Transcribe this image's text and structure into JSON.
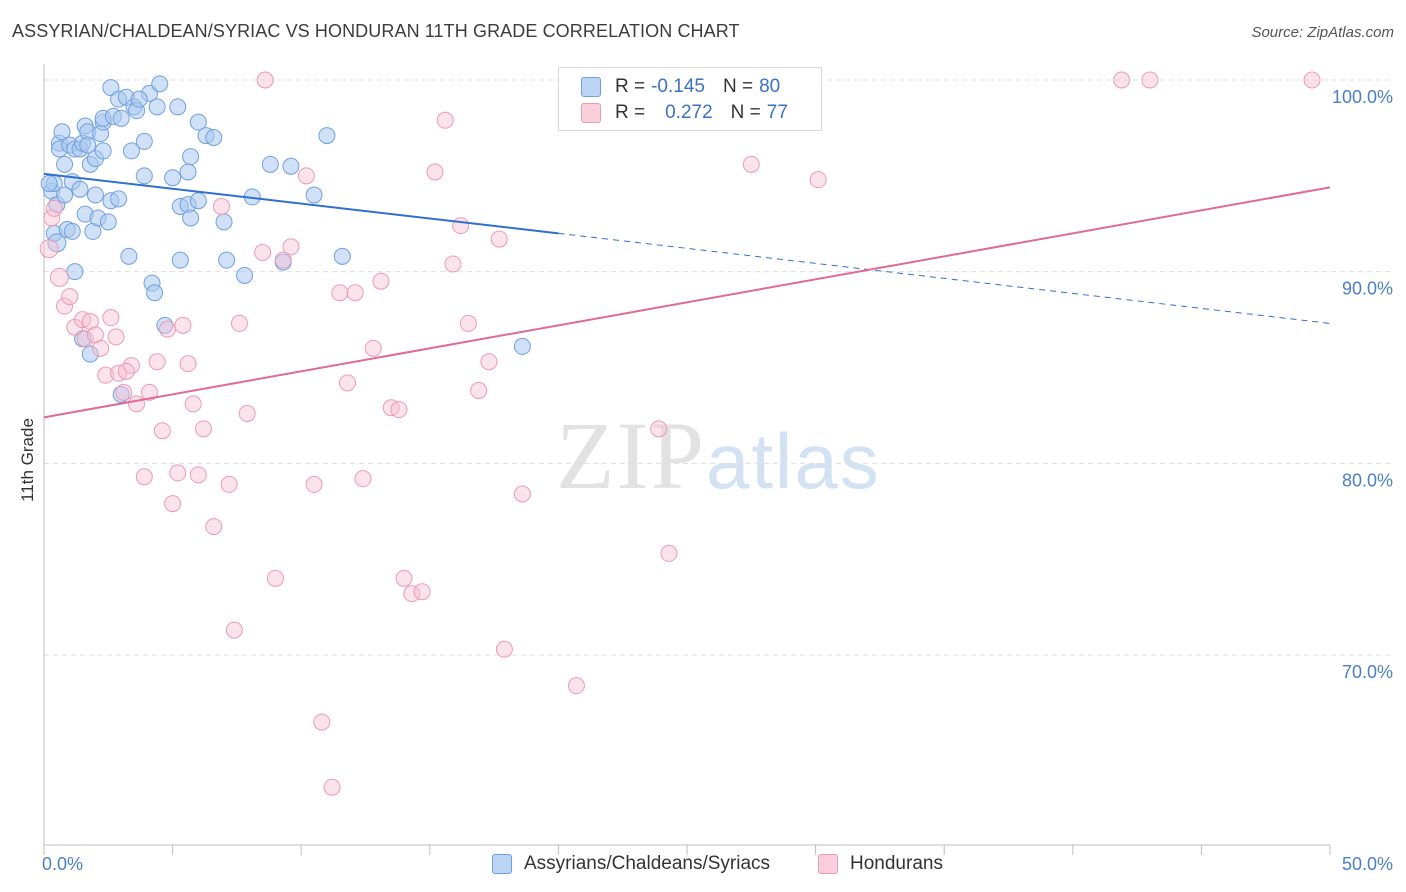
{
  "title": "ASSYRIAN/CHALDEAN/SYRIAC VS HONDURAN 11TH GRADE CORRELATION CHART",
  "source": "Source: ZipAtlas.com",
  "watermark": {
    "zip": "ZIP",
    "atlas": "atlas"
  },
  "legend": {
    "rows": [
      {
        "r_label": "R =",
        "r_value": "-0.145",
        "n_label": "N =",
        "n_value": "80"
      },
      {
        "r_label": "R =",
        "r_value": "0.272",
        "n_label": "N =",
        "n_value": "77"
      }
    ]
  },
  "colors": {
    "blue": "#a9c8f0",
    "blue_stroke": "#6fa0de",
    "blue_line": "#2f6fd0",
    "pink": "#f7c1d2",
    "pink_stroke": "#ec9ab3",
    "pink_line": "#e06a93"
  },
  "chart_data": {
    "type": "scatter",
    "title": "ASSYRIAN/CHALDEAN/SYRIAC VS HONDURAN 11TH GRADE CORRELATION CHART",
    "xlabel": "",
    "ylabel": "11th Grade",
    "xlim": [
      0,
      50
    ],
    "ylim": [
      60,
      102
    ],
    "x_tick_labels": [
      "0.0%",
      "50.0%"
    ],
    "y_ticks": [
      70,
      80,
      90,
      100
    ],
    "y_tick_labels": [
      "70.0%",
      "80.0%",
      "90.0%",
      "100.0%"
    ],
    "grid": true,
    "legend_position": "top-center",
    "series": [
      {
        "name": "Assyrians/Chaldeans/Syriacs",
        "color": "#a9c8f0",
        "trend": {
          "x": [
            0,
            20
          ],
          "y": [
            95.1,
            92.0
          ],
          "dashed_to_x": 50,
          "dashed_to_y": 87.3
        },
        "points": [
          [
            0.3,
            94.2
          ],
          [
            0.4,
            92.0
          ],
          [
            0.4,
            94.6
          ],
          [
            0.5,
            93.5
          ],
          [
            0.6,
            96.7
          ],
          [
            0.6,
            96.4
          ],
          [
            0.7,
            97.3
          ],
          [
            0.8,
            95.6
          ],
          [
            0.8,
            94.0
          ],
          [
            0.9,
            92.2
          ],
          [
            1.0,
            96.6
          ],
          [
            1.1,
            94.7
          ],
          [
            1.1,
            92.1
          ],
          [
            1.2,
            90.0
          ],
          [
            1.2,
            96.4
          ],
          [
            1.4,
            96.4
          ],
          [
            1.4,
            94.3
          ],
          [
            1.5,
            96.7
          ],
          [
            1.5,
            86.5
          ],
          [
            1.6,
            93.0
          ],
          [
            1.6,
            97.6
          ],
          [
            1.7,
            97.3
          ],
          [
            1.7,
            96.6
          ],
          [
            1.8,
            95.6
          ],
          [
            1.8,
            85.7
          ],
          [
            1.9,
            92.1
          ],
          [
            2.0,
            95.9
          ],
          [
            2.0,
            94.0
          ],
          [
            2.1,
            92.8
          ],
          [
            2.2,
            97.2
          ],
          [
            2.3,
            96.3
          ],
          [
            2.3,
            97.8
          ],
          [
            2.3,
            98.0
          ],
          [
            2.5,
            92.6
          ],
          [
            2.6,
            99.6
          ],
          [
            2.6,
            93.7
          ],
          [
            2.7,
            98.1
          ],
          [
            2.9,
            93.8
          ],
          [
            2.9,
            99.0
          ],
          [
            3.0,
            83.6
          ],
          [
            3.0,
            98.0
          ],
          [
            3.2,
            99.1
          ],
          [
            3.3,
            90.8
          ],
          [
            3.4,
            96.3
          ],
          [
            3.5,
            98.6
          ],
          [
            3.6,
            98.4
          ],
          [
            3.9,
            96.8
          ],
          [
            3.9,
            95.0
          ],
          [
            4.1,
            99.3
          ],
          [
            4.2,
            89.4
          ],
          [
            4.3,
            88.9
          ],
          [
            4.4,
            98.6
          ],
          [
            4.5,
            99.8
          ],
          [
            4.7,
            87.2
          ],
          [
            5.0,
            94.9
          ],
          [
            5.2,
            98.6
          ],
          [
            5.3,
            93.4
          ],
          [
            5.3,
            90.6
          ],
          [
            5.6,
            93.5
          ],
          [
            5.6,
            95.2
          ],
          [
            5.7,
            96.0
          ],
          [
            5.7,
            92.8
          ],
          [
            6.0,
            93.7
          ],
          [
            6.0,
            97.8
          ],
          [
            6.3,
            97.1
          ],
          [
            6.6,
            97.0
          ],
          [
            7.1,
            90.6
          ],
          [
            7.0,
            92.6
          ],
          [
            7.8,
            89.8
          ],
          [
            8.8,
            95.6
          ],
          [
            9.3,
            90.5
          ],
          [
            9.6,
            95.5
          ],
          [
            10.5,
            94.0
          ],
          [
            11.0,
            97.1
          ],
          [
            11.6,
            90.8
          ],
          [
            18.6,
            86.1
          ],
          [
            8.1,
            93.9
          ],
          [
            3.7,
            99.0
          ],
          [
            0.2,
            94.6
          ],
          [
            0.5,
            91.5
          ]
        ]
      },
      {
        "name": "Hondurans",
        "color": "#f7c1d2",
        "trend": {
          "x": [
            0,
            50
          ],
          "y": [
            82.4,
            94.4
          ]
        },
        "points": [
          [
            0.2,
            91.2
          ],
          [
            0.3,
            92.8
          ],
          [
            0.4,
            93.3
          ],
          [
            0.6,
            89.7
          ],
          [
            0.8,
            88.2
          ],
          [
            1.0,
            88.7
          ],
          [
            1.2,
            87.1
          ],
          [
            1.5,
            87.5
          ],
          [
            1.6,
            86.5
          ],
          [
            1.8,
            87.4
          ],
          [
            2.0,
            86.7
          ],
          [
            2.2,
            86.0
          ],
          [
            2.4,
            84.6
          ],
          [
            2.6,
            87.6
          ],
          [
            2.8,
            86.6
          ],
          [
            2.9,
            84.7
          ],
          [
            3.1,
            83.7
          ],
          [
            3.4,
            85.1
          ],
          [
            3.6,
            83.1
          ],
          [
            3.9,
            79.3
          ],
          [
            4.1,
            83.7
          ],
          [
            4.4,
            85.3
          ],
          [
            4.6,
            81.7
          ],
          [
            5.0,
            77.9
          ],
          [
            5.2,
            79.5
          ],
          [
            5.4,
            87.2
          ],
          [
            5.6,
            85.2
          ],
          [
            5.8,
            83.1
          ],
          [
            6.0,
            79.4
          ],
          [
            6.2,
            81.8
          ],
          [
            6.6,
            76.7
          ],
          [
            6.9,
            93.4
          ],
          [
            7.2,
            78.9
          ],
          [
            7.4,
            71.3
          ],
          [
            7.6,
            87.3
          ],
          [
            7.9,
            82.6
          ],
          [
            8.5,
            91.0
          ],
          [
            9.0,
            74.0
          ],
          [
            9.3,
            90.6
          ],
          [
            9.6,
            91.3
          ],
          [
            10.2,
            95.0
          ],
          [
            10.5,
            78.9
          ],
          [
            10.8,
            66.5
          ],
          [
            11.2,
            63.1
          ],
          [
            11.5,
            88.9
          ],
          [
            11.8,
            84.2
          ],
          [
            12.1,
            88.9
          ],
          [
            12.4,
            79.2
          ],
          [
            12.8,
            86.0
          ],
          [
            13.1,
            89.5
          ],
          [
            13.5,
            82.9
          ],
          [
            13.8,
            82.8
          ],
          [
            14.0,
            74.0
          ],
          [
            14.3,
            73.2
          ],
          [
            14.7,
            73.3
          ],
          [
            15.2,
            95.2
          ],
          [
            15.6,
            97.9
          ],
          [
            15.9,
            90.4
          ],
          [
            16.2,
            92.4
          ],
          [
            16.5,
            87.3
          ],
          [
            16.9,
            83.8
          ],
          [
            17.3,
            85.3
          ],
          [
            17.7,
            91.7
          ],
          [
            17.9,
            70.3
          ],
          [
            18.6,
            78.4
          ],
          [
            20.7,
            68.4
          ],
          [
            23.9,
            81.8
          ],
          [
            24.3,
            75.3
          ],
          [
            27.5,
            95.6
          ],
          [
            28.7,
            100.0
          ],
          [
            30.1,
            94.8
          ],
          [
            8.6,
            100.0
          ],
          [
            3.2,
            84.8
          ],
          [
            4.8,
            87.0
          ],
          [
            41.9,
            100.0
          ],
          [
            43.0,
            100.0
          ],
          [
            49.3,
            100.0
          ]
        ]
      }
    ]
  }
}
